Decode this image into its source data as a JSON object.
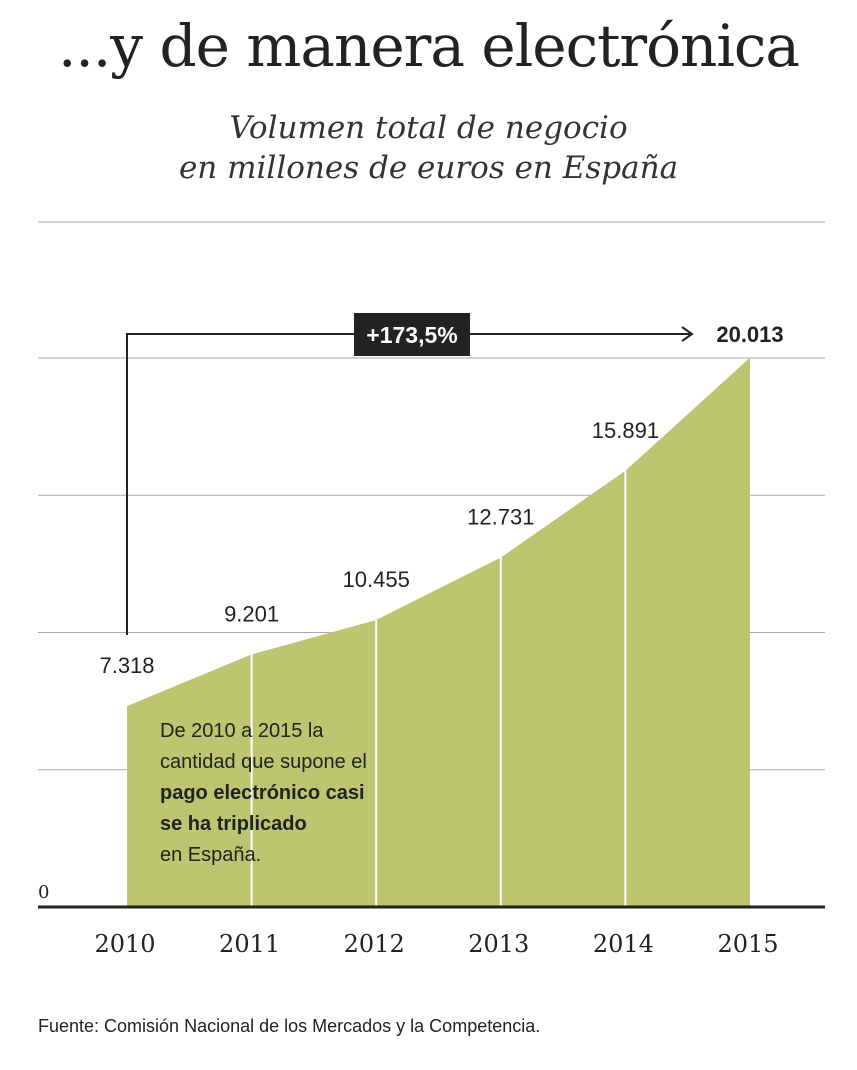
{
  "title": "...y de manera electrónica",
  "subtitle": [
    "Volumen total de negocio",
    "en millones de euros en España"
  ],
  "note": {
    "line1": "De 2010 a 2015 la",
    "line2": "cantidad que supone el",
    "bold1": "pago electrónico casi",
    "bold2": "se ha triplicado",
    "line3": "en España."
  },
  "source": "Fuente: Comisión Nacional de los Mercados y la Competencia.",
  "colors": {
    "fill": "#bcc56f",
    "text": "#222222",
    "grid": "#aaaaaa"
  },
  "chart_data": {
    "type": "area",
    "categories": [
      "2010",
      "2011",
      "2012",
      "2013",
      "2014",
      "2015"
    ],
    "values": [
      7318,
      9201,
      10455,
      12731,
      15891,
      20013
    ],
    "value_labels": [
      "7.318",
      "9.201",
      "10.455",
      "12.731",
      "15.891",
      "20.013"
    ],
    "ylim": [
      0,
      20000
    ],
    "gridlines": [
      5000,
      10000,
      15000,
      20000
    ],
    "zero_label": "0",
    "annotation": "+173,5%"
  }
}
